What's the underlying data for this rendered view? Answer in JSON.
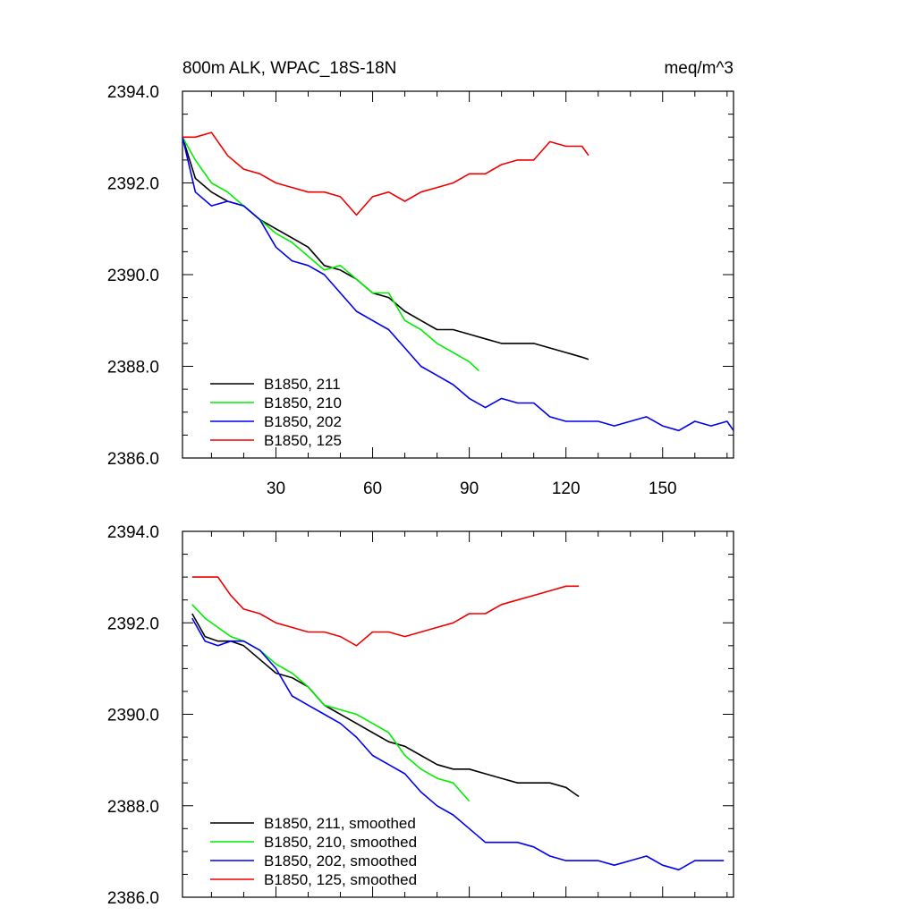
{
  "chart_data": [
    {
      "type": "line",
      "title": "800m ALK, WPAC_18S-18N",
      "units": "meq/m^3",
      "xlim": [
        1,
        172
      ],
      "ylim": [
        2386.0,
        2394.0
      ],
      "xticks": [
        30,
        60,
        90,
        120,
        150
      ],
      "yticks": [
        "2386.0",
        "2388.0",
        "2390.0",
        "2392.0",
        "2394.0"
      ],
      "grid": false,
      "legend": "bottom-left",
      "series": [
        {
          "name": "B1850, 211",
          "color": "#000000",
          "x": [
            1,
            5,
            10,
            15,
            20,
            25,
            30,
            35,
            40,
            45,
            50,
            55,
            60,
            65,
            70,
            75,
            80,
            85,
            90,
            95,
            100,
            105,
            110,
            115,
            120,
            125,
            127
          ],
          "y": [
            2393.0,
            2392.1,
            2391.8,
            2391.6,
            2391.5,
            2391.2,
            2391.0,
            2390.8,
            2390.6,
            2390.2,
            2390.1,
            2389.9,
            2389.6,
            2389.5,
            2389.2,
            2389.0,
            2388.8,
            2388.8,
            2388.7,
            2388.6,
            2388.5,
            2388.5,
            2388.5,
            2388.4,
            2388.3,
            2388.2,
            2388.15
          ]
        },
        {
          "name": "B1850, 210",
          "color": "#00ee00",
          "x": [
            1,
            5,
            10,
            15,
            20,
            25,
            30,
            35,
            40,
            45,
            50,
            55,
            60,
            65,
            70,
            75,
            80,
            85,
            90,
            93
          ],
          "y": [
            2393.0,
            2392.5,
            2392.0,
            2391.8,
            2391.5,
            2391.2,
            2390.9,
            2390.7,
            2390.4,
            2390.1,
            2390.2,
            2389.9,
            2389.6,
            2389.6,
            2389.0,
            2388.8,
            2388.5,
            2388.3,
            2388.1,
            2387.9
          ]
        },
        {
          "name": "B1850, 202",
          "color": "#0000ee",
          "x": [
            1,
            5,
            10,
            15,
            20,
            25,
            30,
            35,
            40,
            45,
            50,
            55,
            60,
            65,
            70,
            75,
            80,
            85,
            90,
            95,
            100,
            105,
            110,
            115,
            120,
            125,
            130,
            135,
            140,
            145,
            150,
            155,
            160,
            165,
            170,
            172
          ],
          "y": [
            2393.0,
            2391.8,
            2391.5,
            2391.6,
            2391.5,
            2391.2,
            2390.6,
            2390.3,
            2390.2,
            2390.0,
            2389.6,
            2389.2,
            2389.0,
            2388.8,
            2388.4,
            2388.0,
            2387.8,
            2387.6,
            2387.3,
            2387.1,
            2387.3,
            2387.2,
            2387.2,
            2386.9,
            2386.8,
            2386.8,
            2386.8,
            2386.7,
            2386.8,
            2386.9,
            2386.7,
            2386.6,
            2386.8,
            2386.7,
            2386.8,
            2386.6
          ]
        },
        {
          "name": "B1850, 125",
          "color": "#ee0000",
          "x": [
            1,
            5,
            10,
            15,
            20,
            25,
            30,
            35,
            40,
            45,
            50,
            55,
            60,
            65,
            70,
            75,
            80,
            85,
            90,
            95,
            100,
            105,
            110,
            115,
            120,
            125,
            127
          ],
          "y": [
            2393.0,
            2393.0,
            2393.1,
            2392.6,
            2392.3,
            2392.2,
            2392.0,
            2391.9,
            2391.8,
            2391.8,
            2391.7,
            2391.3,
            2391.7,
            2391.8,
            2391.6,
            2391.8,
            2391.9,
            2392.0,
            2392.2,
            2392.2,
            2392.4,
            2392.5,
            2392.5,
            2392.9,
            2392.8,
            2392.8,
            2392.6
          ]
        }
      ]
    },
    {
      "type": "line",
      "xlim": [
        1,
        172
      ],
      "ylim": [
        2386.0,
        2394.0
      ],
      "yticks": [
        "2386.0",
        "2388.0",
        "2390.0",
        "2392.0",
        "2394.0"
      ],
      "grid": false,
      "legend": "bottom-left",
      "series": [
        {
          "name": "B1850, 211, smoothed",
          "color": "#000000",
          "x": [
            4,
            8,
            12,
            16,
            20,
            25,
            30,
            35,
            40,
            45,
            50,
            55,
            60,
            65,
            70,
            75,
            80,
            85,
            90,
            95,
            100,
            105,
            110,
            115,
            120,
            124
          ],
          "y": [
            2392.2,
            2391.7,
            2391.6,
            2391.6,
            2391.5,
            2391.2,
            2390.9,
            2390.8,
            2390.6,
            2390.2,
            2390.0,
            2389.8,
            2389.6,
            2389.4,
            2389.3,
            2389.1,
            2388.9,
            2388.8,
            2388.8,
            2388.7,
            2388.6,
            2388.5,
            2388.5,
            2388.5,
            2388.4,
            2388.2
          ]
        },
        {
          "name": "B1850, 210, smoothed",
          "color": "#00ee00",
          "x": [
            4,
            8,
            12,
            16,
            20,
            25,
            30,
            35,
            40,
            45,
            50,
            55,
            60,
            65,
            70,
            75,
            80,
            85,
            90
          ],
          "y": [
            2392.4,
            2392.1,
            2391.9,
            2391.7,
            2391.6,
            2391.4,
            2391.1,
            2390.9,
            2390.6,
            2390.2,
            2390.1,
            2390.0,
            2389.8,
            2389.6,
            2389.1,
            2388.8,
            2388.6,
            2388.5,
            2388.1
          ]
        },
        {
          "name": "B1850, 202, smoothed",
          "color": "#0000ee",
          "x": [
            4,
            8,
            12,
            16,
            20,
            25,
            30,
            35,
            40,
            45,
            50,
            55,
            60,
            65,
            70,
            75,
            80,
            85,
            90,
            95,
            100,
            105,
            110,
            115,
            120,
            125,
            130,
            135,
            140,
            145,
            150,
            155,
            160,
            165,
            169
          ],
          "y": [
            2392.1,
            2391.6,
            2391.5,
            2391.6,
            2391.6,
            2391.4,
            2391.0,
            2390.4,
            2390.2,
            2390.0,
            2389.8,
            2389.5,
            2389.1,
            2388.9,
            2388.7,
            2388.3,
            2388.0,
            2387.8,
            2387.5,
            2387.2,
            2387.2,
            2387.2,
            2387.1,
            2386.9,
            2386.8,
            2386.8,
            2386.8,
            2386.7,
            2386.8,
            2386.9,
            2386.7,
            2386.6,
            2386.8,
            2386.8,
            2386.8
          ]
        },
        {
          "name": "B1850, 125, smoothed",
          "color": "#ee0000",
          "x": [
            4,
            8,
            12,
            16,
            20,
            25,
            30,
            35,
            40,
            45,
            50,
            55,
            60,
            65,
            70,
            75,
            80,
            85,
            90,
            95,
            100,
            105,
            110,
            115,
            120,
            124
          ],
          "y": [
            2393.0,
            2393.0,
            2393.0,
            2392.6,
            2392.3,
            2392.2,
            2392.0,
            2391.9,
            2391.8,
            2391.8,
            2391.7,
            2391.5,
            2391.8,
            2391.8,
            2391.7,
            2391.8,
            2391.9,
            2392.0,
            2392.2,
            2392.2,
            2392.4,
            2392.5,
            2392.6,
            2392.7,
            2392.8,
            2392.8
          ]
        }
      ]
    }
  ]
}
